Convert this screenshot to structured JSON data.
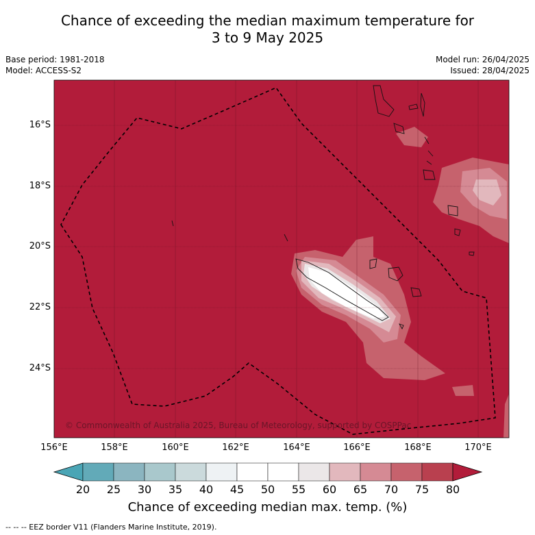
{
  "title_line1": "Chance of exceeding the median maximum temperature for",
  "title_line2": "3 to 9 May 2025",
  "meta_left": [
    "Base period: 1981-2018",
    "Model: ACCESS-S2"
  ],
  "meta_right": [
    "Model run: 26/04/2025",
    "Issued: 28/04/2025"
  ],
  "lat_labels": [
    "16°S",
    "18°S",
    "20°S",
    "22°S",
    "24°S"
  ],
  "lon_labels": [
    "156°E",
    "158°E",
    "160°E",
    "162°E",
    "164°E",
    "166°E",
    "168°E",
    "170°E"
  ],
  "copyright": "© Commonwealth of Australia 2025, Bureau of Meteorology, supported by COSPPac",
  "colorbar": {
    "ticks": [
      "20",
      "25",
      "30",
      "35",
      "40",
      "45",
      "50",
      "55",
      "60",
      "65",
      "70",
      "75",
      "80"
    ],
    "colors": [
      "#62aab8",
      "#8bb5c0",
      "#a9c8cc",
      "#cbdadc",
      "#eef2f4",
      "#ffffff",
      "#ffffff",
      "#ebe7e8",
      "#e2b8bd",
      "#d58a94",
      "#c6626d",
      "#b9404f"
    ],
    "under_color": "#4aa5b5",
    "over_color": "#b21c3a",
    "label": "Chance of exceeding median max. temp. (%)"
  },
  "footnote": "-- -- -- EEZ border V11 (Flanders Marine Institute, 2019).",
  "background_color": "#b21c3a"
}
